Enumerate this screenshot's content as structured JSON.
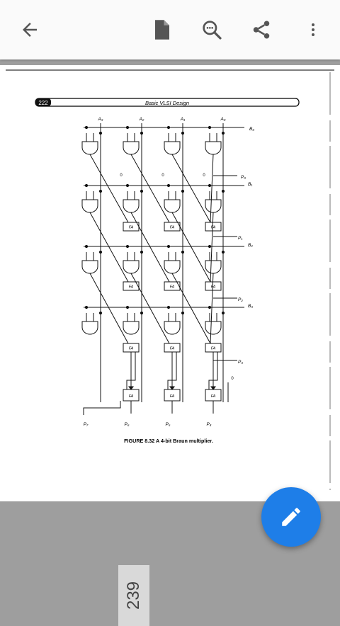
{
  "toolbar": {
    "back_icon": "arrow-left-icon",
    "document_icon": "document-icon",
    "search_icon": "search-icon",
    "share_icon": "share-icon",
    "more_icon": "more-vert-icon"
  },
  "document": {
    "page_number_header": "222",
    "book_title": "Basic VLSI Design",
    "inputs_a": [
      "A₃",
      "A₂",
      "A₁",
      "A₀"
    ],
    "inputs_b": [
      "B₀",
      "B₁",
      "B₂",
      "B₃"
    ],
    "partial_outputs": [
      "P₀",
      "P₁",
      "P₂",
      "P₃"
    ],
    "zero_label": "0",
    "fa_label": "FA",
    "bottom_outputs": [
      "P₇",
      "P₆",
      "P₅",
      "P₄"
    ],
    "figure_caption": "FIGURE 8.32  A 4-bit Braun multiplier."
  },
  "viewer": {
    "current_page": "239"
  },
  "fab": {
    "icon": "pencil-icon"
  }
}
